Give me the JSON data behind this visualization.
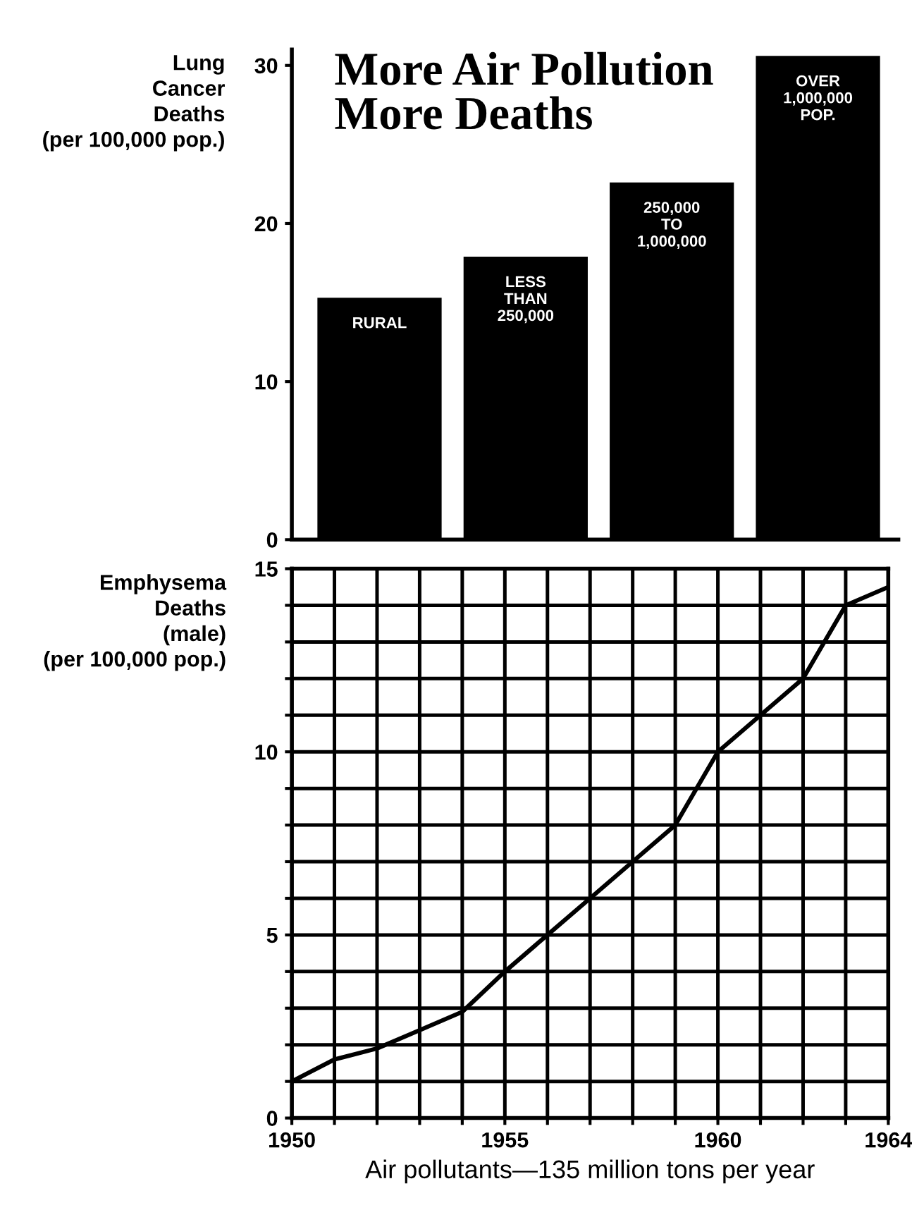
{
  "chart_data": [
    {
      "type": "bar",
      "title": "More Air Pollution\nMore Deaths",
      "ylabel": "Lung\nCancer\nDeaths\n(per 100,000 pop.)",
      "categories": [
        "RURAL",
        "LESS\nTHAN\n250,000",
        "250,000\nTO\n1,000,000",
        "OVER\n1,000,000\nPOP."
      ],
      "series": [
        {
          "color": "#000000",
          "values": [
            15.3,
            17.9,
            22.6,
            30.6
          ]
        }
      ],
      "ylim": [
        0,
        31
      ],
      "yticks": [
        0,
        10,
        20,
        30
      ],
      "grid": false,
      "legend": false
    },
    {
      "type": "line",
      "xlabel": "Air pollutants—135 million tons per year",
      "ylabel": "Emphysema\nDeaths\n(male)\n(per 100,000 pop.)",
      "x": [
        1950,
        1951,
        1952,
        1953,
        1954,
        1955,
        1956,
        1957,
        1958,
        1959,
        1960,
        1961,
        1962,
        1963,
        1964
      ],
      "series": [
        {
          "color": "#000000",
          "values": [
            1.0,
            1.6,
            1.9,
            2.4,
            2.9,
            4.0,
            5.0,
            6.0,
            7.0,
            8.0,
            10.0,
            11.0,
            12.0,
            14.0,
            14.5
          ]
        }
      ],
      "xlim": [
        1950,
        1964
      ],
      "ylim": [
        0,
        15
      ],
      "xticks": [
        1950,
        {
          "value": 1951,
          "label": null
        },
        {
          "value": 1952,
          "label": null
        },
        {
          "value": 1953,
          "label": null
        },
        {
          "value": 1954,
          "label": null
        },
        1955,
        {
          "value": 1956,
          "label": null
        },
        {
          "value": 1957,
          "label": null
        },
        {
          "value": 1958,
          "label": null
        },
        {
          "value": 1959,
          "label": null
        },
        1960,
        {
          "value": 1961,
          "label": null
        },
        {
          "value": 1962,
          "label": null
        },
        {
          "value": 1963,
          "label": null
        },
        1964
      ],
      "yticks": [
        0,
        {
          "value": 1,
          "label": null
        },
        {
          "value": 2,
          "label": null
        },
        {
          "value": 3,
          "label": null
        },
        {
          "value": 4,
          "label": null
        },
        5,
        {
          "value": 6,
          "label": null
        },
        {
          "value": 7,
          "label": null
        },
        {
          "value": 8,
          "label": null
        },
        {
          "value": 9,
          "label": null
        },
        10,
        {
          "value": 11,
          "label": null
        },
        {
          "value": 12,
          "label": null
        },
        {
          "value": 13,
          "label": null
        },
        {
          "value": 14,
          "label": null
        },
        15
      ],
      "grid": true,
      "legend": false,
      "marker": "none",
      "line_style": "solid"
    }
  ]
}
